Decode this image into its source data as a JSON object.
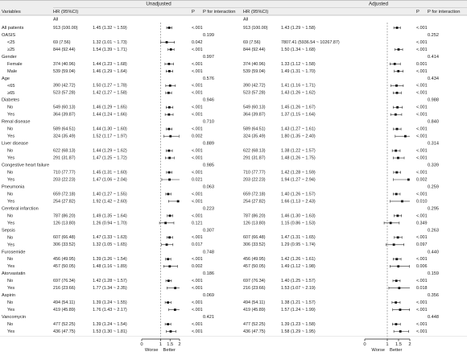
{
  "chart_data": {
    "type": "forest",
    "panels": [
      {
        "title": "Unadjusted",
        "xticks": [
          0,
          1,
          1.5,
          2
        ],
        "xlim": [
          0,
          2
        ],
        "reference": 1,
        "left_label": "Worse",
        "right_label": "Better"
      },
      {
        "title": "Adjusted",
        "xticks": [
          0,
          1,
          1.5,
          2
        ],
        "xlim": [
          0,
          2
        ],
        "reference": 1,
        "left_label": "Worse",
        "right_label": "Better"
      }
    ],
    "columns": {
      "variables": "Variables",
      "all": "All",
      "hr": "HR (95%CI)",
      "p": "P",
      "p_interaction": "P for interaction"
    },
    "rows": [
      {
        "label": "All patients",
        "kind": "sub",
        "u": {
          "n": "913 (100.00)",
          "ci": "1.45 (1.32 ~ 1.59)",
          "hr": 1.45,
          "lo": 1.32,
          "hi": 1.59,
          "p": "<.001"
        },
        "a": {
          "n": "913 (100.00)",
          "ci": "1.43 (1.29 ~ 1.58)",
          "hr": 1.43,
          "lo": 1.29,
          "hi": 1.58,
          "p": "<.001"
        }
      },
      {
        "label": "OASIS",
        "kind": "group",
        "u": {
          "pint": "0.199"
        },
        "a": {
          "pint": "0.252"
        }
      },
      {
        "label": "<25",
        "kind": "sub",
        "u": {
          "n": "69 (7.56)",
          "ci": "1.32 (1.01 ~ 1.73)",
          "hr": 1.32,
          "lo": 1.01,
          "hi": 1.73,
          "p": "0.042"
        },
        "a": {
          "n": "69 (7.56)",
          "ci": "7807.41 (5936.54 ~ 10267.87)",
          "hr": 7807.41,
          "lo": 5936.54,
          "hi": 10267.87,
          "p": "<.001"
        }
      },
      {
        "label": "≥25",
        "kind": "sub",
        "u": {
          "n": "844 (92.44)",
          "ci": "1.54 (1.39 ~ 1.71)",
          "hr": 1.54,
          "lo": 1.39,
          "hi": 1.71,
          "p": "<.001"
        },
        "a": {
          "n": "844 (92.44)",
          "ci": "1.50 (1.34 ~ 1.68)",
          "hr": 1.5,
          "lo": 1.34,
          "hi": 1.68,
          "p": "<.001"
        }
      },
      {
        "label": "Gender",
        "kind": "group",
        "u": {
          "pint": "0.997"
        },
        "a": {
          "pint": "0.414"
        }
      },
      {
        "label": "Female",
        "kind": "sub",
        "u": {
          "n": "374 (40.96)",
          "ci": "1.44 (1.23 ~ 1.68)",
          "hr": 1.44,
          "lo": 1.23,
          "hi": 1.68,
          "p": "<.001"
        },
        "a": {
          "n": "374 (40.96)",
          "ci": "1.33 (1.12 ~ 1.58)",
          "hr": 1.33,
          "lo": 1.12,
          "hi": 1.58,
          "p": "0.001"
        }
      },
      {
        "label": "Male",
        "kind": "sub",
        "u": {
          "n": "539 (59.04)",
          "ci": "1.46 (1.29 ~ 1.64)",
          "hr": 1.46,
          "lo": 1.29,
          "hi": 1.64,
          "p": "<.001"
        },
        "a": {
          "n": "539 (59.04)",
          "ci": "1.49 (1.31 ~ 1.70)",
          "hr": 1.49,
          "lo": 1.31,
          "hi": 1.7,
          "p": "<.001"
        }
      },
      {
        "label": "Age",
        "kind": "group",
        "u": {
          "pint": "0.576"
        },
        "a": {
          "pint": "0.434"
        }
      },
      {
        "label": "<65",
        "kind": "sub",
        "u": {
          "n": "390 (42.72)",
          "ci": "1.50 (1.27 ~ 1.78)",
          "hr": 1.5,
          "lo": 1.27,
          "hi": 1.78,
          "p": "<.001"
        },
        "a": {
          "n": "390 (42.72)",
          "ci": "1.41 (1.16 ~ 1.71)",
          "hr": 1.41,
          "lo": 1.16,
          "hi": 1.71,
          "p": "<.001"
        }
      },
      {
        "label": "≥65",
        "kind": "sub",
        "u": {
          "n": "523 (57.28)",
          "ci": "1.42 (1.27 ~ 1.58)",
          "hr": 1.42,
          "lo": 1.27,
          "hi": 1.58,
          "p": "<.001"
        },
        "a": {
          "n": "523 (57.28)",
          "ci": "1.43 (1.26 ~ 1.62)",
          "hr": 1.43,
          "lo": 1.26,
          "hi": 1.62,
          "p": "<.001"
        }
      },
      {
        "label": "Diabetes",
        "kind": "group",
        "u": {
          "pint": "0.946"
        },
        "a": {
          "pint": "0.988"
        }
      },
      {
        "label": "No",
        "kind": "sub",
        "u": {
          "n": "549 (60.13)",
          "ci": "1.46 (1.29 ~ 1.65)",
          "hr": 1.46,
          "lo": 1.29,
          "hi": 1.65,
          "p": "<.001"
        },
        "a": {
          "n": "549 (60.13)",
          "ci": "1.45 (1.26 ~ 1.67)",
          "hr": 1.45,
          "lo": 1.26,
          "hi": 1.67,
          "p": "<.001"
        }
      },
      {
        "label": "Yes",
        "kind": "sub",
        "u": {
          "n": "364 (39.87)",
          "ci": "1.44 (1.24 ~ 1.66)",
          "hr": 1.44,
          "lo": 1.24,
          "hi": 1.66,
          "p": "<.001"
        },
        "a": {
          "n": "364 (39.87)",
          "ci": "1.37 (1.15 ~ 1.64)",
          "hr": 1.37,
          "lo": 1.15,
          "hi": 1.64,
          "p": "<.001"
        }
      },
      {
        "label": "Renal disease",
        "kind": "group",
        "u": {
          "pint": "0.710"
        },
        "a": {
          "pint": "0.840"
        }
      },
      {
        "label": "No",
        "kind": "sub",
        "u": {
          "n": "589 (64.51)",
          "ci": "1.44 (1.30 ~ 1.60)",
          "hr": 1.44,
          "lo": 1.3,
          "hi": 1.6,
          "p": "<.001"
        },
        "a": {
          "n": "589 (64.51)",
          "ci": "1.43 (1.27 ~ 1.61)",
          "hr": 1.43,
          "lo": 1.27,
          "hi": 1.61,
          "p": "<.001"
        }
      },
      {
        "label": "Yes",
        "kind": "sub",
        "u": {
          "n": "324 (35.49)",
          "ci": "1.52 (1.17 ~ 1.97)",
          "hr": 1.52,
          "lo": 1.17,
          "hi": 1.97,
          "p": "0.002"
        },
        "a": {
          "n": "324 (35.49)",
          "ci": "1.80 (1.35 ~ 2.40)",
          "hr": 1.8,
          "lo": 1.35,
          "hi": 2.4,
          "p": "<.001"
        }
      },
      {
        "label": "Liver disease",
        "kind": "group",
        "u": {
          "pint": "0.889"
        },
        "a": {
          "pint": "0.314"
        }
      },
      {
        "label": "No",
        "kind": "sub",
        "u": {
          "n": "622 (68.13)",
          "ci": "1.44 (1.29 ~ 1.62)",
          "hr": 1.44,
          "lo": 1.29,
          "hi": 1.62,
          "p": "<.001"
        },
        "a": {
          "n": "622 (68.13)",
          "ci": "1.38 (1.22 ~ 1.57)",
          "hr": 1.38,
          "lo": 1.22,
          "hi": 1.57,
          "p": "<.001"
        }
      },
      {
        "label": "Yes",
        "kind": "sub",
        "u": {
          "n": "291 (31.87)",
          "ci": "1.47 (1.25 ~ 1.72)",
          "hr": 1.47,
          "lo": 1.25,
          "hi": 1.72,
          "p": "<.001"
        },
        "a": {
          "n": "291 (31.87)",
          "ci": "1.48 (1.26 ~ 1.75)",
          "hr": 1.48,
          "lo": 1.26,
          "hi": 1.75,
          "p": "<.001"
        }
      },
      {
        "label": "Congestive heart failure",
        "kind": "group",
        "u": {
          "pint": "0.985"
        },
        "a": {
          "pint": "0.339"
        }
      },
      {
        "label": "No",
        "kind": "sub",
        "u": {
          "n": "710 (77.77)",
          "ci": "1.45 (1.31 ~ 1.60)",
          "hr": 1.45,
          "lo": 1.31,
          "hi": 1.6,
          "p": "<.001"
        },
        "a": {
          "n": "710 (77.77)",
          "ci": "1.42 (1.28 ~ 1.59)",
          "hr": 1.42,
          "lo": 1.28,
          "hi": 1.59,
          "p": "<.001"
        }
      },
      {
        "label": "Yes",
        "kind": "sub",
        "u": {
          "n": "203 (22.23)",
          "ci": "1.47 (1.06 ~ 2.04)",
          "hr": 1.47,
          "lo": 1.06,
          "hi": 2.04,
          "p": "0.021"
        },
        "a": {
          "n": "203 (22.23)",
          "ci": "1.94 (1.27 ~ 2.94)",
          "hr": 1.94,
          "lo": 1.27,
          "hi": 2.94,
          "p": "0.002"
        }
      },
      {
        "label": "Pneumonia",
        "kind": "group",
        "u": {
          "pint": "0.063"
        },
        "a": {
          "pint": "0.259"
        }
      },
      {
        "label": "No",
        "kind": "sub",
        "u": {
          "n": "659 (72.18)",
          "ci": "1.40 (1.27 ~ 1.55)",
          "hr": 1.4,
          "lo": 1.27,
          "hi": 1.55,
          "p": "<.001"
        },
        "a": {
          "n": "659 (72.18)",
          "ci": "1.40 (1.26 ~ 1.57)",
          "hr": 1.4,
          "lo": 1.26,
          "hi": 1.57,
          "p": "<.001"
        }
      },
      {
        "label": "Yes",
        "kind": "sub",
        "u": {
          "n": "254 (27.82)",
          "ci": "1.92 (1.42 ~ 2.60)",
          "hr": 1.92,
          "lo": 1.42,
          "hi": 2.6,
          "p": "<.001"
        },
        "a": {
          "n": "254 (27.82)",
          "ci": "1.66 (1.13 ~ 2.43)",
          "hr": 1.66,
          "lo": 1.13,
          "hi": 2.43,
          "p": "0.010"
        }
      },
      {
        "label": "Cerebral infarction",
        "kind": "group",
        "u": {
          "pint": "0.223"
        },
        "a": {
          "pint": "0.295"
        }
      },
      {
        "label": "No",
        "kind": "sub",
        "u": {
          "n": "787 (86.20)",
          "ci": "1.49 (1.35 ~ 1.64)",
          "hr": 1.49,
          "lo": 1.35,
          "hi": 1.64,
          "p": "<.001"
        },
        "a": {
          "n": "787 (86.20)",
          "ci": "1.46 (1.30 ~ 1.63)",
          "hr": 1.46,
          "lo": 1.3,
          "hi": 1.63,
          "p": "<.001"
        }
      },
      {
        "label": "Yes",
        "kind": "sub",
        "u": {
          "n": "126 (13.80)",
          "ci": "1.26 (0.94 ~ 1.70)",
          "hr": 1.26,
          "lo": 0.94,
          "hi": 1.7,
          "p": "0.121"
        },
        "a": {
          "n": "126 (13.80)",
          "ci": "1.15 (0.86 ~ 1.53)",
          "hr": 1.15,
          "lo": 0.86,
          "hi": 1.53,
          "p": "0.349"
        }
      },
      {
        "label": "Sepsis",
        "kind": "group",
        "u": {
          "pint": "0.307"
        },
        "a": {
          "pint": "0.263"
        }
      },
      {
        "label": "No",
        "kind": "sub",
        "u": {
          "n": "607 (66.48)",
          "ci": "1.47 (1.33 ~ 1.63)",
          "hr": 1.47,
          "lo": 1.33,
          "hi": 1.63,
          "p": "<.001"
        },
        "a": {
          "n": "607 (66.48)",
          "ci": "1.47 (1.31 ~ 1.65)",
          "hr": 1.47,
          "lo": 1.31,
          "hi": 1.65,
          "p": "<.001"
        }
      },
      {
        "label": "Yes",
        "kind": "sub",
        "u": {
          "n": "306 (33.52)",
          "ci": "1.32 (1.05 ~ 1.65)",
          "hr": 1.32,
          "lo": 1.05,
          "hi": 1.65,
          "p": "0.017"
        },
        "a": {
          "n": "306 (33.52)",
          "ci": "1.29 (0.95 ~ 1.74)",
          "hr": 1.29,
          "lo": 0.95,
          "hi": 1.74,
          "p": "0.097"
        }
      },
      {
        "label": "Furosemide",
        "kind": "group",
        "u": {
          "pint": "0.748"
        },
        "a": {
          "pint": "0.440"
        }
      },
      {
        "label": "No",
        "kind": "sub",
        "u": {
          "n": "456 (49.95)",
          "ci": "1.39 (1.26 ~ 1.54)",
          "hr": 1.39,
          "lo": 1.26,
          "hi": 1.54,
          "p": "<.001"
        },
        "a": {
          "n": "456 (49.95)",
          "ci": "1.42 (1.26 ~ 1.61)",
          "hr": 1.42,
          "lo": 1.26,
          "hi": 1.61,
          "p": "<.001"
        }
      },
      {
        "label": "Yes",
        "kind": "sub",
        "u": {
          "n": "457 (50.05)",
          "ci": "1.48 (1.16 ~ 1.89)",
          "hr": 1.48,
          "lo": 1.16,
          "hi": 1.89,
          "p": "0.002"
        },
        "a": {
          "n": "457 (50.05)",
          "ci": "1.49 (1.12 ~ 1.98)",
          "hr": 1.49,
          "lo": 1.12,
          "hi": 1.98,
          "p": "0.006"
        }
      },
      {
        "label": "Atorvastatin",
        "kind": "group",
        "u": {
          "pint": "0.186"
        },
        "a": {
          "pint": "0.159"
        }
      },
      {
        "label": "No",
        "kind": "sub",
        "u": {
          "n": "697 (76.34)",
          "ci": "1.42 (1.28 ~ 1.57)",
          "hr": 1.42,
          "lo": 1.28,
          "hi": 1.57,
          "p": "<.001"
        },
        "a": {
          "n": "697 (76.34)",
          "ci": "1.40 (1.25 ~ 1.57)",
          "hr": 1.4,
          "lo": 1.25,
          "hi": 1.57,
          "p": "<.001"
        }
      },
      {
        "label": "Yes",
        "kind": "sub",
        "u": {
          "n": "216 (23.66)",
          "ci": "1.77 (1.34 ~ 2.35)",
          "hr": 1.77,
          "lo": 1.34,
          "hi": 2.35,
          "p": "<.001"
        },
        "a": {
          "n": "216 (23.66)",
          "ci": "1.53 (1.07 ~ 2.19)",
          "hr": 1.53,
          "lo": 1.07,
          "hi": 2.19,
          "p": "0.018"
        }
      },
      {
        "label": "Aspirin",
        "kind": "group",
        "u": {
          "pint": "0.069"
        },
        "a": {
          "pint": "0.356"
        }
      },
      {
        "label": "No",
        "kind": "sub",
        "u": {
          "n": "494 (54.11)",
          "ci": "1.39 (1.24 ~ 1.55)",
          "hr": 1.39,
          "lo": 1.24,
          "hi": 1.55,
          "p": "<.001"
        },
        "a": {
          "n": "494 (54.11)",
          "ci": "1.38 (1.21 ~ 1.57)",
          "hr": 1.38,
          "lo": 1.21,
          "hi": 1.57,
          "p": "<.001"
        }
      },
      {
        "label": "Yes",
        "kind": "sub",
        "u": {
          "n": "419 (45.89)",
          "ci": "1.76 (1.43 ~ 2.17)",
          "hr": 1.76,
          "lo": 1.43,
          "hi": 2.17,
          "p": "<.001"
        },
        "a": {
          "n": "419 (45.89)",
          "ci": "1.57 (1.24 ~ 1.99)",
          "hr": 1.57,
          "lo": 1.24,
          "hi": 1.99,
          "p": "<.001"
        }
      },
      {
        "label": "Vancomycin",
        "kind": "group",
        "u": {
          "pint": "0.421"
        },
        "a": {
          "pint": "0.448"
        }
      },
      {
        "label": "No",
        "kind": "sub",
        "u": {
          "n": "477 (52.25)",
          "ci": "1.39 (1.24 ~ 1.54)",
          "hr": 1.39,
          "lo": 1.24,
          "hi": 1.54,
          "p": "<.001"
        },
        "a": {
          "n": "477 (52.25)",
          "ci": "1.39 (1.23 ~ 1.58)",
          "hr": 1.39,
          "lo": 1.23,
          "hi": 1.58,
          "p": "<.001"
        }
      },
      {
        "label": "Yes",
        "kind": "sub",
        "u": {
          "n": "436 (47.75)",
          "ci": "1.53 (1.30 ~ 1.81)",
          "hr": 1.53,
          "lo": 1.3,
          "hi": 1.81,
          "p": "<.001"
        },
        "a": {
          "n": "436 (47.75)",
          "ci": "1.58 (1.29 ~ 1.95)",
          "hr": 1.58,
          "lo": 1.29,
          "hi": 1.95,
          "p": "<.001"
        }
      }
    ]
  }
}
